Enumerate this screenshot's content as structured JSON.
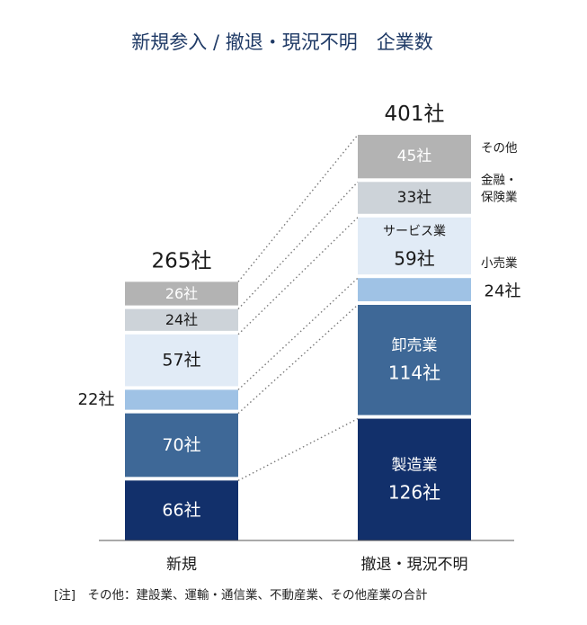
{
  "title": "新規参入 / 撤退・現況不明　企業数",
  "note": "[注]　その他：建設業、運輸・通信業、不動産業、その他産業の合計",
  "colors": {
    "title": "#1f3a66",
    "manufacturing": "#12306b",
    "wholesale": "#3e6897",
    "retail": "#9fc2e5",
    "service": "#e1ebf6",
    "finance": "#cdd3d9",
    "other": "#b3b3b3",
    "connector": "#7a7a7a"
  },
  "chart_data": {
    "type": "bar",
    "stacked": true,
    "categories": [
      "新規",
      "撤退・現況不明"
    ],
    "totals": [
      265,
      401
    ],
    "total_labels": [
      "265社",
      "401社"
    ],
    "unit": "社",
    "series": [
      {
        "name": "製造業",
        "key": "manufacturing",
        "values": [
          66,
          126
        ],
        "labels": [
          "66社",
          "126社"
        ]
      },
      {
        "name": "卸売業",
        "key": "wholesale",
        "values": [
          70,
          114
        ],
        "labels": [
          "70社",
          "114社"
        ]
      },
      {
        "name": "小売業",
        "key": "retail",
        "values": [
          22,
          24
        ],
        "labels": [
          "22社",
          "24社"
        ]
      },
      {
        "name": "サービス業",
        "key": "service",
        "values": [
          57,
          59
        ],
        "labels": [
          "57社",
          "59社"
        ]
      },
      {
        "name": "金融・保険業",
        "key": "finance",
        "values": [
          24,
          33
        ],
        "labels": [
          "24社",
          "33社"
        ]
      },
      {
        "name": "その他",
        "key": "other",
        "values": [
          26,
          45
        ],
        "labels": [
          "26社",
          "45社"
        ]
      }
    ],
    "legend_labels": {
      "retail": "小売業",
      "finance": [
        "金融・",
        "保険業"
      ],
      "other": "その他"
    }
  }
}
